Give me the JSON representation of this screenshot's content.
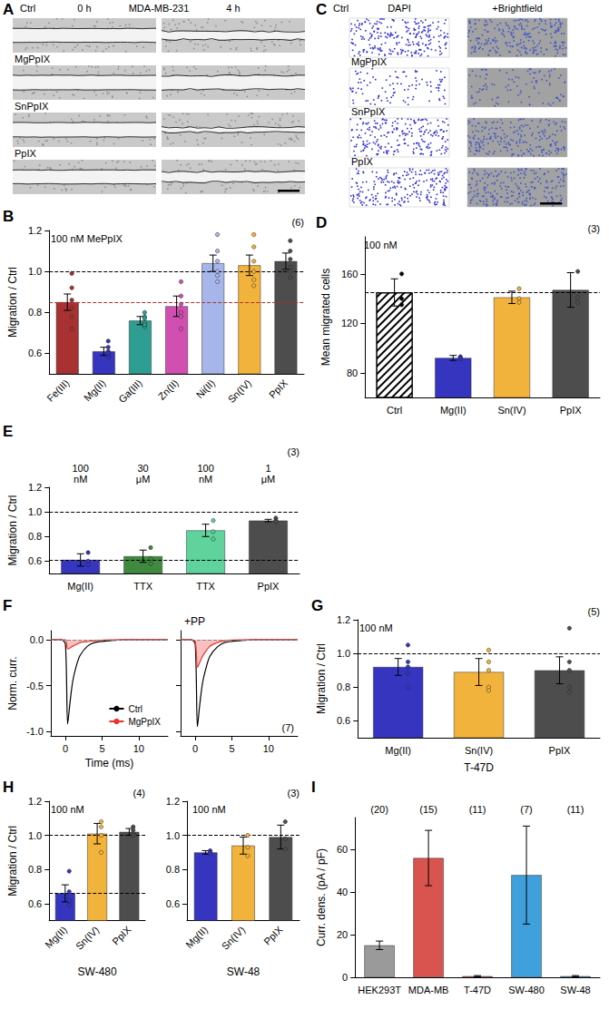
{
  "chart_data": [
    {
      "type": "image",
      "panel": "A",
      "title": "MDA-MB-231",
      "columns": [
        "0 h",
        "4 h"
      ],
      "rows": [
        "Ctrl",
        "MgPpIX",
        "SnPpIX",
        "PpIX"
      ]
    },
    {
      "type": "bar",
      "panel": "B",
      "annotation": "100 nM MePpIX",
      "n_label": "(6)",
      "ylabel": "Migration / Ctrl",
      "categories": [
        "Fe(III)",
        "Mg(II)",
        "Ga(III)",
        "Zn(II)",
        "Ni(II)",
        "Sn(IV)",
        "PpIX"
      ],
      "values": [
        0.85,
        0.61,
        0.76,
        0.83,
        1.04,
        1.03,
        1.05
      ],
      "errors": [
        0.04,
        0.02,
        0.02,
        0.05,
        0.04,
        0.05,
        0.04
      ],
      "points": [
        [
          0.99,
          0.92,
          0.86,
          0.78,
          0.72,
          0.82
        ],
        [
          0.66,
          0.63,
          0.61,
          0.59,
          0.58,
          0.6
        ],
        [
          0.8,
          0.78,
          0.77,
          0.75,
          0.73,
          0.74
        ],
        [
          0.95,
          0.88,
          0.84,
          0.78,
          0.72,
          0.8
        ],
        [
          1.18,
          1.1,
          1.05,
          1.0,
          0.95,
          0.98
        ],
        [
          1.18,
          1.12,
          1.05,
          1.0,
          0.93,
          0.96
        ],
        [
          1.15,
          1.1,
          1.06,
          1.02,
          0.97,
          1.0
        ]
      ],
      "colors": [
        "#a83232",
        "#3535c0",
        "#2e9e92",
        "#d04fb0",
        "#a7b6ea",
        "#f2b33d",
        "#4d4d4d"
      ],
      "ylim": [
        0.5,
        1.2
      ],
      "yticks": [
        0.6,
        0.8,
        {
          "value": 1,
          "label": "1.0"
        },
        1.2
      ],
      "reference_lines": [
        {
          "value": 1,
          "color": "#000000"
        },
        {
          "value": 0.85,
          "color": "#a83232"
        }
      ],
      "grid": false
    },
    {
      "type": "image",
      "panel": "C",
      "columns": [
        "DAPI",
        "+Brightfield"
      ],
      "rows": [
        "Ctrl",
        "MgPpIX",
        "SnPpIX",
        "PpIX"
      ]
    },
    {
      "type": "bar",
      "panel": "D",
      "annotation": "100 nM",
      "n_label": "(3)",
      "ylabel": "Mean migrated cells",
      "categories": [
        "Ctrl",
        "Mg(II)",
        "Sn(IV)",
        "PpIX"
      ],
      "values": [
        145,
        92,
        141,
        147
      ],
      "errors": [
        11,
        2,
        5,
        14
      ],
      "points": [
        [
          160,
          140,
          135
        ],
        [
          93,
          92,
          91
        ],
        [
          148,
          140,
          137
        ],
        [
          162,
          141,
          137
        ]
      ],
      "colors": [
        "#ffffff",
        "#3535c0",
        "#f2b33d",
        "#4d4d4d"
      ],
      "ylim": [
        60,
        190
      ],
      "yticks": [
        80,
        120,
        160
      ],
      "reference_lines": [
        {
          "value": 145,
          "color": "#000000"
        }
      ],
      "grid": false
    },
    {
      "type": "bar",
      "panel": "E",
      "n_label": "(3)",
      "ylabel": "Migration / Ctrl",
      "categories": [
        "Mg(II)",
        "TTX",
        "TTX",
        "PpIX"
      ],
      "group_labels": [
        "100 nM",
        "30 μM",
        "100 nM",
        "1 μM"
      ],
      "values": [
        0.61,
        0.64,
        0.85,
        0.93
      ],
      "errors": [
        0.05,
        0.05,
        0.05,
        0.01
      ],
      "points": [
        [
          0.67,
          0.6,
          0.57
        ],
        [
          0.71,
          0.62,
          0.58
        ],
        [
          0.93,
          0.84,
          0.78
        ],
        [
          0.95,
          0.93,
          0.92
        ]
      ],
      "colors": [
        "#3535c0",
        "#3f8a3f",
        "#5fd39b",
        "#4d4d4d"
      ],
      "ylim": [
        0.5,
        1.2
      ],
      "yticks": [
        0.6,
        0.8,
        {
          "value": 1,
          "label": "1.0"
        },
        1.2
      ],
      "reference_lines": [
        {
          "value": 1,
          "color": "#000000"
        },
        {
          "value": 0.61,
          "color": "#000000"
        }
      ],
      "grid": false
    },
    {
      "type": "line",
      "panel": "F",
      "n_label": "(7)",
      "xlabel": "Time (ms)",
      "ylabel": "Norm. curr.",
      "legend": "lower right",
      "x": [
        -2,
        -1,
        -0.5,
        0,
        0.3,
        0.6,
        1,
        1.5,
        2,
        3,
        4,
        6,
        8,
        10,
        12,
        14
      ],
      "xlim": [
        -2,
        14
      ],
      "xticks": [
        0,
        5,
        10
      ],
      "ylim": [
        -1.05,
        0.1
      ],
      "yticks": [
        {
          "value": -1,
          "label": "-1.0"
        },
        -0.5,
        {
          "value": 0,
          "label": "0.0"
        }
      ],
      "reference_lines": [
        {
          "value": 0,
          "color": "#888888"
        }
      ],
      "subplots": [
        {
          "series": [
            {
              "name": "Ctrl",
              "type": "line",
              "color": "#000000",
              "values": [
                0,
                0,
                0,
                -0.05,
                -0.92,
                -0.7,
                -0.45,
                -0.28,
                -0.17,
                -0.07,
                -0.03,
                -0.01,
                0,
                0,
                0,
                0
              ]
            },
            {
              "name": "MgPpIX",
              "type": "area",
              "color": "#e8332a",
              "values": [
                0,
                0,
                0,
                0,
                -0.1,
                -0.09,
                -0.07,
                -0.05,
                -0.03,
                -0.02,
                -0.01,
                0,
                0,
                0,
                0,
                0
              ]
            }
          ]
        },
        {
          "title": "+PP",
          "series": [
            {
              "name": "Ctrl",
              "type": "line",
              "color": "#000000",
              "values": [
                0,
                0,
                0,
                -0.05,
                -0.95,
                -0.72,
                -0.47,
                -0.3,
                -0.18,
                -0.08,
                -0.03,
                -0.01,
                0,
                0,
                0,
                0
              ]
            },
            {
              "name": "MgPpIX",
              "type": "area",
              "color": "#e8332a",
              "values": [
                0,
                0,
                0,
                -0.02,
                -0.3,
                -0.25,
                -0.18,
                -0.12,
                -0.07,
                -0.03,
                -0.01,
                0,
                0,
                0,
                0,
                0
              ]
            }
          ]
        }
      ],
      "grid": false
    },
    {
      "type": "bar",
      "panel": "G",
      "annotation": "100 nM",
      "n_label": "(5)",
      "ylabel": "Migration / Ctrl",
      "xlabel": "T-47D",
      "categories": [
        "Mg(II)",
        "Sn(IV)",
        "PpIX"
      ],
      "values": [
        0.92,
        0.89,
        0.9
      ],
      "errors": [
        0.05,
        0.08,
        0.08
      ],
      "points": [
        [
          1.05,
          0.95,
          0.92,
          0.88,
          0.8
        ],
        [
          1.02,
          0.95,
          0.9,
          0.8,
          0.78
        ],
        [
          1.15,
          0.95,
          0.9,
          0.8,
          0.77
        ]
      ],
      "colors": [
        "#3535c0",
        "#f2b33d",
        "#4d4d4d"
      ],
      "ylim": [
        0.5,
        1.2
      ],
      "yticks": [
        0.6,
        0.8,
        {
          "value": 1,
          "label": "1.0"
        },
        1.2
      ],
      "reference_lines": [
        {
          "value": 1,
          "color": "#000000"
        }
      ],
      "grid": false
    },
    {
      "type": "bar",
      "panel": "H",
      "annotation": "100 nM",
      "n_label": "(4)",
      "ylabel": "Migration / Ctrl",
      "xlabel": "SW-480",
      "categories": [
        "Mg(II)",
        "Sn(IV)",
        "PpIX"
      ],
      "values": [
        0.66,
        1.01,
        1.02
      ],
      "errors": [
        0.05,
        0.06,
        0.02
      ],
      "points": [
        [
          0.79,
          0.67,
          0.62,
          0.59
        ],
        [
          1.08,
          1.05,
          1.0,
          0.9
        ],
        [
          1.05,
          1.03,
          1.01,
          1.0
        ]
      ],
      "colors": [
        "#3535c0",
        "#f2b33d",
        "#4d4d4d"
      ],
      "ylim": [
        0.5,
        1.2
      ],
      "yticks": [
        0.6,
        0.8,
        {
          "value": 1,
          "label": "1.0"
        },
        1.2
      ],
      "reference_lines": [
        {
          "value": 1,
          "color": "#000000"
        },
        {
          "value": 0.66,
          "color": "#000000"
        }
      ],
      "grid": false
    },
    {
      "type": "bar",
      "annotation": "100 nM",
      "n_label": "(3)",
      "xlabel": "SW-48",
      "categories": [
        "Mg(II)",
        "Sn(IV)",
        "PpIX"
      ],
      "values": [
        0.9,
        0.94,
        0.99
      ],
      "errors": [
        0.01,
        0.05,
        0.07
      ],
      "points": [
        [
          0.91,
          0.9,
          0.89
        ],
        [
          1.0,
          0.93,
          0.88
        ],
        [
          1.08,
          0.98,
          0.92
        ]
      ],
      "colors": [
        "#3535c0",
        "#f2b33d",
        "#4d4d4d"
      ],
      "ylim": [
        0.5,
        1.2
      ],
      "yticks": [
        0.6,
        0.8,
        {
          "value": 1,
          "label": "1.0"
        },
        1.2
      ],
      "reference_lines": [
        {
          "value": 1,
          "color": "#000000"
        }
      ],
      "grid": false
    },
    {
      "type": "bar",
      "panel": "I",
      "ylabel": "Curr. dens. (pA / pF)",
      "categories": [
        "HEK293T",
        "MDA-MB",
        "T-47D",
        "SW-480",
        "SW-48"
      ],
      "group_labels": [
        "(20)",
        "(15)",
        "(11)",
        "(7)",
        "(11)"
      ],
      "values": [
        15,
        56,
        0.5,
        48,
        0.5
      ],
      "errors": [
        2,
        13,
        0.3,
        23,
        0.3
      ],
      "colors": [
        "#9a9a9a",
        "#d9534f",
        "#d9534f",
        "#3fa0dc",
        "#3fa0dc"
      ],
      "ylim": [
        0,
        75
      ],
      "yticks": [
        0,
        20,
        40,
        60
      ],
      "grid": false
    }
  ]
}
